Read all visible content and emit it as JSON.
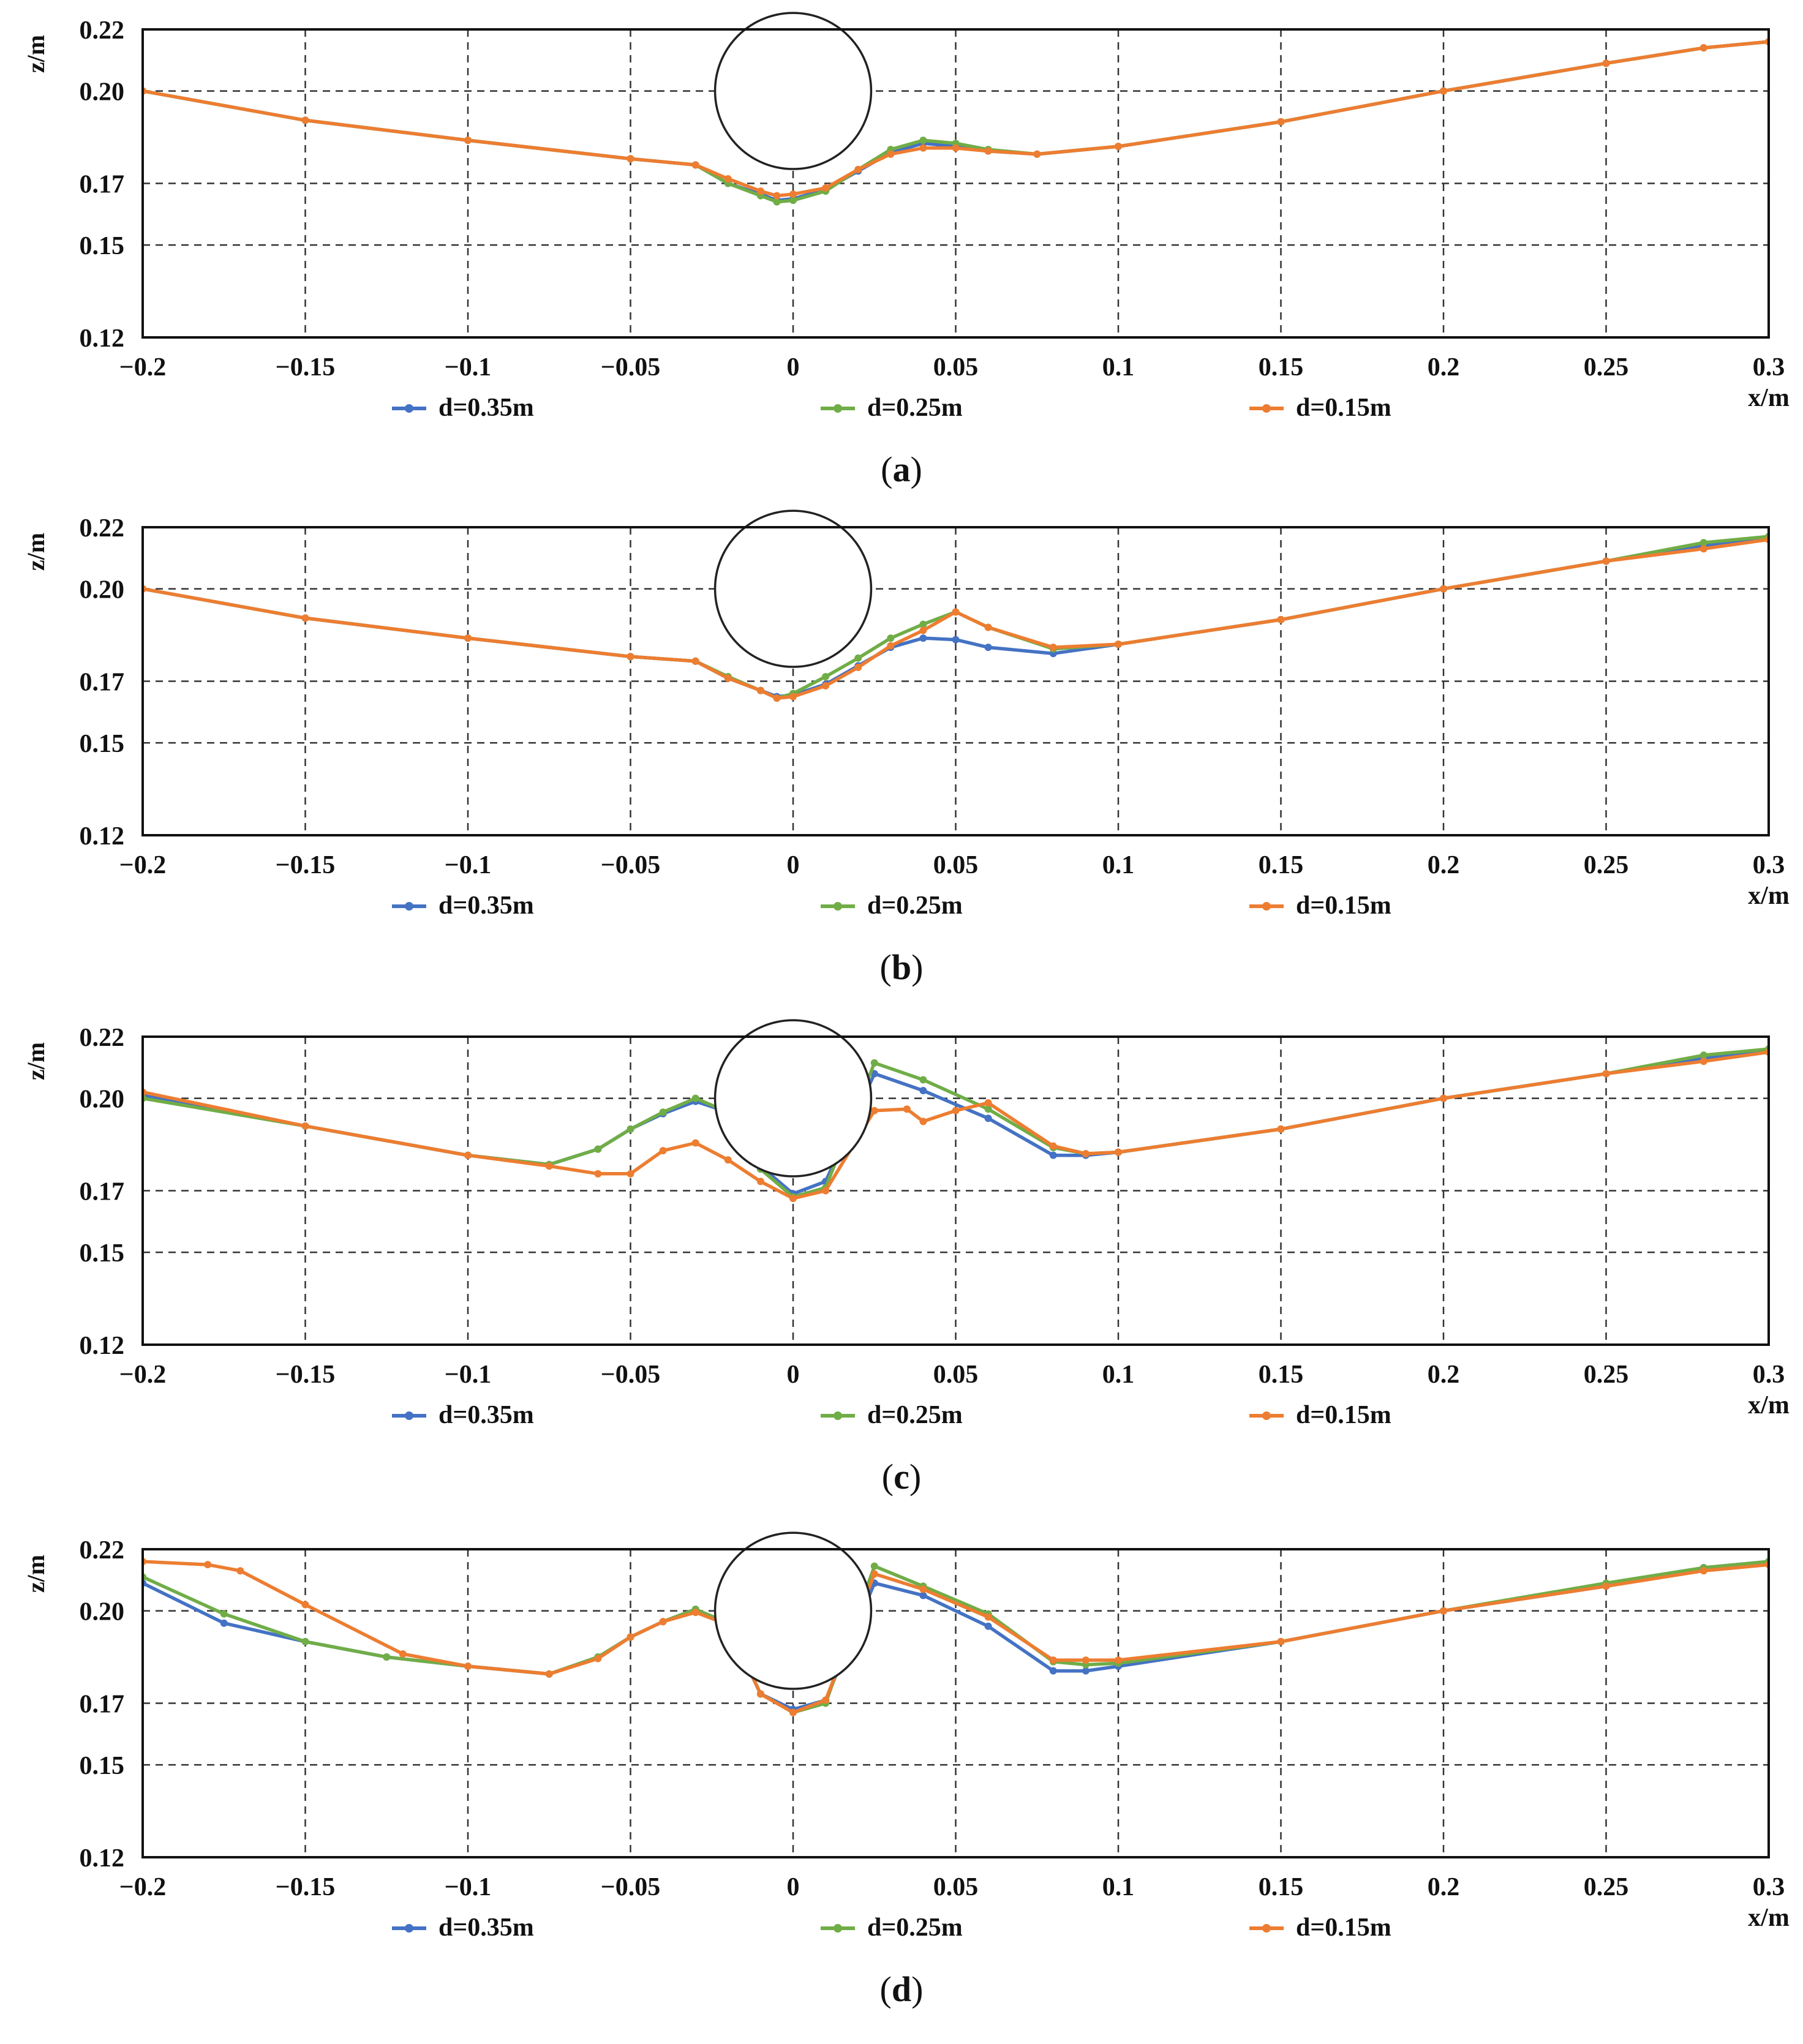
{
  "chart_data": [
    {
      "panel_label": "(a)",
      "type": "line",
      "xlabel": "x/m",
      "ylabel": "z/m",
      "xlim": [
        -0.2,
        0.3
      ],
      "ylim": [
        0.12,
        0.22
      ],
      "x_ticks": [
        -0.2,
        -0.15,
        -0.1,
        -0.05,
        0,
        0.05,
        0.1,
        0.15,
        0.2,
        0.25,
        0.3
      ],
      "x_tick_labels": [
        "−0.2",
        "−0.15",
        "−0.1",
        "−0.05",
        "0",
        "0.05",
        "0.1",
        "0.15",
        "0.2",
        "0.25",
        "0.3"
      ],
      "y_ticks": [
        0.12,
        0.15,
        0.17,
        0.2,
        0.22
      ],
      "y_tick_labels": [
        "0.12",
        "0.15",
        "0.17",
        "0.20",
        "0.22"
      ],
      "grid": true,
      "legend": "bottom",
      "pipe": {
        "cx": 0,
        "cz": 0.2,
        "r": 0.024
      },
      "series": [
        {
          "name": "d=0.35m",
          "color": "#4472c4",
          "x": [
            -0.2,
            -0.15,
            -0.1,
            -0.05,
            -0.03,
            -0.02,
            -0.01,
            -0.005,
            0,
            0.01,
            0.02,
            0.03,
            0.04,
            0.05,
            0.06,
            0.075,
            0.1,
            0.15,
            0.2,
            0.25,
            0.28,
            0.3
          ],
          "y": [
            0.2,
            0.1905,
            0.184,
            0.178,
            0.176,
            0.17,
            0.1665,
            0.1645,
            0.165,
            0.168,
            0.174,
            0.18,
            0.183,
            0.182,
            0.1805,
            0.1795,
            0.182,
            0.19,
            0.2,
            0.209,
            0.214,
            0.216
          ]
        },
        {
          "name": "d=0.25m",
          "color": "#70ad47",
          "x": [
            -0.2,
            -0.15,
            -0.1,
            -0.05,
            -0.03,
            -0.02,
            -0.01,
            -0.005,
            0,
            0.01,
            0.02,
            0.03,
            0.04,
            0.05,
            0.06,
            0.075,
            0.1,
            0.15,
            0.2,
            0.25,
            0.28,
            0.3
          ],
          "y": [
            0.2,
            0.1905,
            0.184,
            0.178,
            0.176,
            0.17,
            0.166,
            0.164,
            0.1645,
            0.1675,
            0.1745,
            0.181,
            0.184,
            0.183,
            0.181,
            0.1795,
            0.182,
            0.19,
            0.2,
            0.209,
            0.214,
            0.216
          ]
        },
        {
          "name": "d=0.15m",
          "color": "#ed7d31",
          "x": [
            -0.2,
            -0.15,
            -0.1,
            -0.05,
            -0.03,
            -0.02,
            -0.01,
            -0.005,
            0,
            0.01,
            0.02,
            0.03,
            0.04,
            0.05,
            0.06,
            0.075,
            0.1,
            0.15,
            0.2,
            0.25,
            0.28,
            0.3
          ],
          "y": [
            0.2,
            0.1905,
            0.184,
            0.178,
            0.176,
            0.1715,
            0.1675,
            0.166,
            0.1665,
            0.1685,
            0.1745,
            0.1795,
            0.1815,
            0.1815,
            0.1805,
            0.1795,
            0.182,
            0.19,
            0.2,
            0.209,
            0.214,
            0.216
          ]
        }
      ]
    },
    {
      "panel_label": "(b)",
      "type": "line",
      "xlabel": "x/m",
      "ylabel": "z/m",
      "xlim": [
        -0.2,
        0.3
      ],
      "ylim": [
        0.12,
        0.22
      ],
      "x_ticks": [
        -0.2,
        -0.15,
        -0.1,
        -0.05,
        0,
        0.05,
        0.1,
        0.15,
        0.2,
        0.25,
        0.3
      ],
      "x_tick_labels": [
        "−0.2",
        "−0.15",
        "−0.1",
        "−0.05",
        "0",
        "0.05",
        "0.1",
        "0.15",
        "0.2",
        "0.25",
        "0.3"
      ],
      "y_ticks": [
        0.12,
        0.15,
        0.17,
        0.2,
        0.22
      ],
      "y_tick_labels": [
        "0.12",
        "0.15",
        "0.17",
        "0.20",
        "0.22"
      ],
      "grid": true,
      "legend": "bottom",
      "pipe": {
        "cx": 0,
        "cz": 0.2,
        "r": 0.024
      },
      "series": [
        {
          "name": "d=0.35m",
          "color": "#4472c4",
          "x": [
            -0.2,
            -0.15,
            -0.1,
            -0.05,
            -0.03,
            -0.02,
            -0.01,
            -0.005,
            0,
            0.01,
            0.02,
            0.03,
            0.04,
            0.05,
            0.06,
            0.08,
            0.1,
            0.15,
            0.2,
            0.25,
            0.28,
            0.3
          ],
          "y": [
            0.2,
            0.1905,
            0.184,
            0.178,
            0.1765,
            0.171,
            0.167,
            0.165,
            0.1655,
            0.169,
            0.175,
            0.181,
            0.184,
            0.1835,
            0.181,
            0.179,
            0.182,
            0.19,
            0.2,
            0.209,
            0.214,
            0.216
          ]
        },
        {
          "name": "d=0.25m",
          "color": "#70ad47",
          "x": [
            -0.2,
            -0.15,
            -0.1,
            -0.05,
            -0.03,
            -0.02,
            -0.01,
            -0.005,
            0,
            0.01,
            0.02,
            0.03,
            0.04,
            0.05,
            0.06,
            0.08,
            0.1,
            0.15,
            0.2,
            0.25,
            0.28,
            0.3
          ],
          "y": [
            0.2,
            0.1905,
            0.184,
            0.178,
            0.1765,
            0.1715,
            0.167,
            0.1645,
            0.166,
            0.1715,
            0.1775,
            0.184,
            0.1885,
            0.1925,
            0.1875,
            0.1805,
            0.182,
            0.19,
            0.2,
            0.209,
            0.215,
            0.217
          ]
        },
        {
          "name": "d=0.15m",
          "color": "#ed7d31",
          "x": [
            -0.2,
            -0.15,
            -0.1,
            -0.05,
            -0.03,
            -0.02,
            -0.01,
            -0.005,
            0,
            0.01,
            0.02,
            0.03,
            0.04,
            0.05,
            0.06,
            0.08,
            0.1,
            0.15,
            0.2,
            0.25,
            0.28,
            0.3
          ],
          "y": [
            0.2,
            0.1905,
            0.184,
            0.178,
            0.1765,
            0.171,
            0.167,
            0.1645,
            0.165,
            0.1685,
            0.1745,
            0.1815,
            0.1865,
            0.1925,
            0.1875,
            0.181,
            0.182,
            0.19,
            0.2,
            0.209,
            0.213,
            0.216
          ]
        }
      ]
    },
    {
      "panel_label": "(c)",
      "type": "line",
      "xlabel": "x/m",
      "ylabel": "z/m",
      "xlim": [
        -0.2,
        0.3
      ],
      "ylim": [
        0.12,
        0.22
      ],
      "x_ticks": [
        -0.2,
        -0.15,
        -0.1,
        -0.05,
        0,
        0.05,
        0.1,
        0.15,
        0.2,
        0.25,
        0.3
      ],
      "x_tick_labels": [
        "−0.2",
        "−0.15",
        "−0.1",
        "−0.05",
        "0",
        "0.05",
        "0.1",
        "0.15",
        "0.2",
        "0.25",
        "0.3"
      ],
      "y_ticks": [
        0.12,
        0.15,
        0.17,
        0.2,
        0.22
      ],
      "y_tick_labels": [
        "0.12",
        "0.15",
        "0.17",
        "0.20",
        "0.22"
      ],
      "grid": true,
      "legend": "bottom",
      "pipe": {
        "cx": 0,
        "cz": 0.2,
        "r": 0.024
      },
      "series": [
        {
          "name": "d=0.35m",
          "color": "#4472c4",
          "x": [
            -0.2,
            -0.15,
            -0.1,
            -0.075,
            -0.06,
            -0.05,
            -0.04,
            -0.03,
            -0.02,
            -0.01,
            0,
            0.01,
            0.025,
            0.04,
            0.06,
            0.08,
            0.09,
            0.1,
            0.15,
            0.2,
            0.25,
            0.28,
            0.3
          ],
          "y": [
            0.201,
            0.191,
            0.1815,
            0.1785,
            0.1835,
            0.19,
            0.195,
            0.199,
            0.1955,
            0.178,
            0.169,
            0.173,
            0.208,
            0.2025,
            0.1935,
            0.1815,
            0.1815,
            0.1825,
            0.19,
            0.2,
            0.208,
            0.213,
            0.216
          ]
        },
        {
          "name": "d=0.25m",
          "color": "#70ad47",
          "x": [
            -0.2,
            -0.15,
            -0.1,
            -0.075,
            -0.06,
            -0.05,
            -0.04,
            -0.03,
            -0.02,
            -0.01,
            0,
            0.01,
            0.025,
            0.04,
            0.06,
            0.08,
            0.09,
            0.1,
            0.15,
            0.2,
            0.25,
            0.28,
            0.3
          ],
          "y": [
            0.2,
            0.191,
            0.1815,
            0.1785,
            0.1835,
            0.19,
            0.1955,
            0.2,
            0.1955,
            0.177,
            0.168,
            0.171,
            0.2115,
            0.206,
            0.1965,
            0.184,
            0.182,
            0.1825,
            0.19,
            0.2,
            0.208,
            0.214,
            0.216
          ]
        },
        {
          "name": "d=0.15m",
          "color": "#ed7d31",
          "x": [
            -0.2,
            -0.15,
            -0.1,
            -0.075,
            -0.06,
            -0.05,
            -0.04,
            -0.03,
            -0.02,
            -0.01,
            0,
            0.01,
            0.025,
            0.035,
            0.04,
            0.05,
            0.06,
            0.08,
            0.09,
            0.1,
            0.15,
            0.2,
            0.25,
            0.28,
            0.3
          ],
          "y": [
            0.202,
            0.191,
            0.1815,
            0.178,
            0.1755,
            0.1755,
            0.183,
            0.1855,
            0.18,
            0.173,
            0.1675,
            0.17,
            0.196,
            0.1965,
            0.1925,
            0.196,
            0.1985,
            0.1845,
            0.182,
            0.1825,
            0.19,
            0.2,
            0.208,
            0.212,
            0.215
          ]
        }
      ]
    },
    {
      "panel_label": "(d)",
      "type": "line",
      "xlabel": "x/m",
      "ylabel": "z/m",
      "xlim": [
        -0.2,
        0.3
      ],
      "ylim": [
        0.12,
        0.22
      ],
      "x_ticks": [
        -0.2,
        -0.15,
        -0.1,
        -0.05,
        0,
        0.05,
        0.1,
        0.15,
        0.2,
        0.25,
        0.3
      ],
      "x_tick_labels": [
        "−0.2",
        "−0.15",
        "−0.1",
        "−0.05",
        "0",
        "0.05",
        "0.1",
        "0.15",
        "0.2",
        "0.25",
        "0.3"
      ],
      "y_ticks": [
        0.12,
        0.15,
        0.17,
        0.2,
        0.22
      ],
      "y_tick_labels": [
        "0.12",
        "0.15",
        "0.17",
        "0.20",
        "0.22"
      ],
      "grid": true,
      "legend": "bottom",
      "pipe": {
        "cx": 0,
        "cz": 0.2,
        "r": 0.024
      },
      "series": [
        {
          "name": "d=0.35m",
          "color": "#4472c4",
          "x": [
            -0.2,
            -0.175,
            -0.15,
            -0.125,
            -0.1,
            -0.075,
            -0.06,
            -0.05,
            -0.04,
            -0.03,
            -0.02,
            -0.01,
            0,
            0.01,
            0.025,
            0.04,
            0.06,
            0.08,
            0.09,
            0.1,
            0.15,
            0.2,
            0.25,
            0.28,
            0.3
          ],
          "y": [
            0.209,
            0.196,
            0.19,
            0.185,
            0.182,
            0.1795,
            0.185,
            0.1915,
            0.1965,
            0.2005,
            0.1955,
            0.173,
            0.168,
            0.171,
            0.209,
            0.205,
            0.195,
            0.1805,
            0.1805,
            0.182,
            0.19,
            0.2,
            0.208,
            0.214,
            0.216
          ]
        },
        {
          "name": "d=0.25m",
          "color": "#70ad47",
          "x": [
            -0.2,
            -0.175,
            -0.15,
            -0.125,
            -0.1,
            -0.075,
            -0.06,
            -0.05,
            -0.04,
            -0.03,
            -0.02,
            -0.01,
            0,
            0.01,
            0.025,
            0.04,
            0.06,
            0.08,
            0.09,
            0.1,
            0.15,
            0.2,
            0.25,
            0.28,
            0.3
          ],
          "y": [
            0.211,
            0.199,
            0.19,
            0.185,
            0.182,
            0.1795,
            0.185,
            0.1915,
            0.1965,
            0.2005,
            0.196,
            0.173,
            0.167,
            0.17,
            0.2145,
            0.208,
            0.199,
            0.1835,
            0.1825,
            0.183,
            0.19,
            0.2,
            0.209,
            0.214,
            0.216
          ]
        },
        {
          "name": "d=0.15m",
          "color": "#ed7d31",
          "x": [
            -0.2,
            -0.18,
            -0.17,
            -0.15,
            -0.12,
            -0.1,
            -0.075,
            -0.06,
            -0.05,
            -0.04,
            -0.03,
            -0.02,
            -0.01,
            0,
            0.01,
            0.025,
            0.04,
            0.06,
            0.08,
            0.09,
            0.1,
            0.15,
            0.2,
            0.25,
            0.28,
            0.3
          ],
          "y": [
            0.216,
            0.215,
            0.213,
            0.202,
            0.186,
            0.182,
            0.1795,
            0.1845,
            0.1915,
            0.1965,
            0.1995,
            0.1955,
            0.173,
            0.167,
            0.171,
            0.212,
            0.207,
            0.198,
            0.184,
            0.184,
            0.184,
            0.19,
            0.2,
            0.208,
            0.213,
            0.215
          ]
        }
      ]
    }
  ]
}
